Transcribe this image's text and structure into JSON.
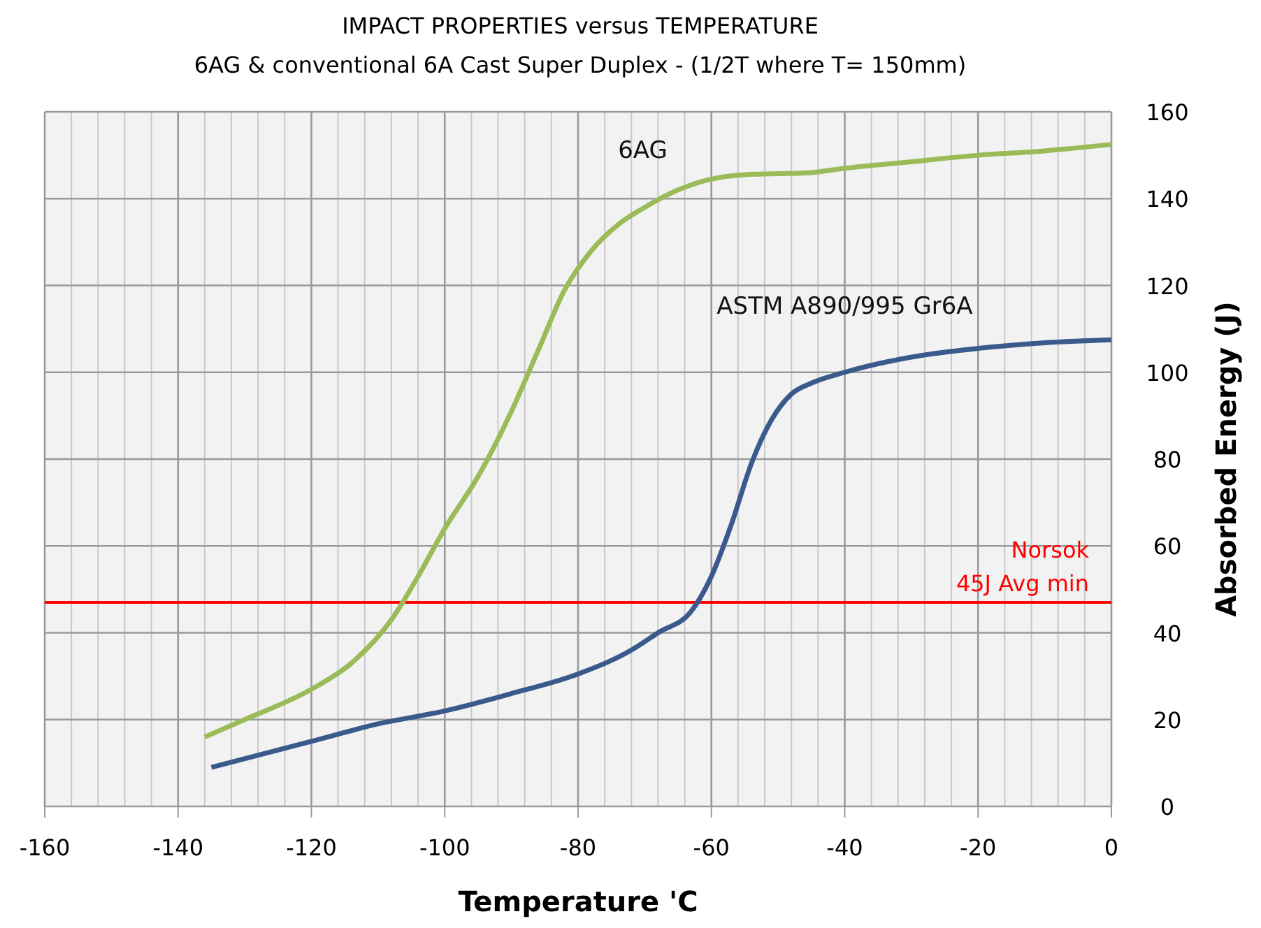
{
  "chart_data": {
    "type": "line",
    "title": "IMPACT PROPERTIES versus TEMPERATURE",
    "subtitle": "6AG  & conventional 6A Cast Super Duplex  - (1/2T  where T= 150mm)",
    "xlabel": "Temperature 'C",
    "ylabel": "Absorbed Energy (J)",
    "xlim": [
      -160,
      0
    ],
    "ylim": [
      0,
      160
    ],
    "xticks": [
      -160,
      {
        "value": -156,
        "label": null
      },
      {
        "value": -152,
        "label": null
      },
      {
        "value": -148,
        "label": null
      },
      {
        "value": -144,
        "label": null
      },
      -140,
      {
        "value": -136,
        "label": null
      },
      {
        "value": -132,
        "label": null
      },
      {
        "value": -128,
        "label": null
      },
      {
        "value": -124,
        "label": null
      },
      -120,
      {
        "value": -116,
        "label": null
      },
      {
        "value": -112,
        "label": null
      },
      {
        "value": -108,
        "label": null
      },
      {
        "value": -104,
        "label": null
      },
      -100,
      {
        "value": -96,
        "label": null
      },
      {
        "value": -92,
        "label": null
      },
      {
        "value": -88,
        "label": null
      },
      {
        "value": -84,
        "label": null
      },
      -80,
      {
        "value": -76,
        "label": null
      },
      {
        "value": -72,
        "label": null
      },
      {
        "value": -68,
        "label": null
      },
      {
        "value": -64,
        "label": null
      },
      -60,
      {
        "value": -56,
        "label": null
      },
      {
        "value": -52,
        "label": null
      },
      {
        "value": -48,
        "label": null
      },
      {
        "value": -44,
        "label": null
      },
      -40,
      {
        "value": -36,
        "label": null
      },
      {
        "value": -32,
        "label": null
      },
      {
        "value": -28,
        "label": null
      },
      {
        "value": -24,
        "label": null
      },
      -20,
      {
        "value": -16,
        "label": null
      },
      {
        "value": -12,
        "label": null
      },
      {
        "value": -8,
        "label": null
      },
      {
        "value": -4,
        "label": null
      },
      0
    ],
    "yticks": [
      0,
      20,
      40,
      60,
      80,
      100,
      120,
      140,
      160
    ],
    "grid": true,
    "series": [
      {
        "name": "6AG",
        "color": "#9bbb59",
        "x": [
          -136,
          -130,
          -120,
          -114,
          -108,
          -104,
          -100,
          -95,
          -90,
          -86,
          -82,
          -78,
          -74,
          -70,
          -65,
          -60,
          -55,
          -45,
          -40,
          -30,
          -20,
          -10,
          0
        ],
        "values": [
          16,
          20,
          27,
          33,
          43,
          53,
          64,
          76,
          91,
          105,
          119,
          128,
          134,
          138,
          142,
          144.5,
          145.5,
          146,
          147,
          148.5,
          150,
          151,
          152.5
        ]
      },
      {
        "name": "ASTM A890/995 Gr6A",
        "color": "#3b5a8c",
        "x": [
          -135,
          -120,
          -110,
          -100,
          -90,
          -80,
          -72,
          -68,
          -63,
          -60,
          -57,
          -54,
          -51,
          -48,
          -45,
          -40,
          -30,
          -20,
          -10,
          0
        ],
        "values": [
          9,
          15,
          19,
          22,
          26,
          30.5,
          36,
          40,
          45,
          53,
          65,
          79,
          89,
          95,
          97.5,
          100,
          103.5,
          105.5,
          106.8,
          107.5
        ]
      }
    ],
    "ref_lines": [
      {
        "axis": "y",
        "value": 47,
        "label": "Norsok\n45J Avg min",
        "color": "#ff0000"
      }
    ]
  }
}
